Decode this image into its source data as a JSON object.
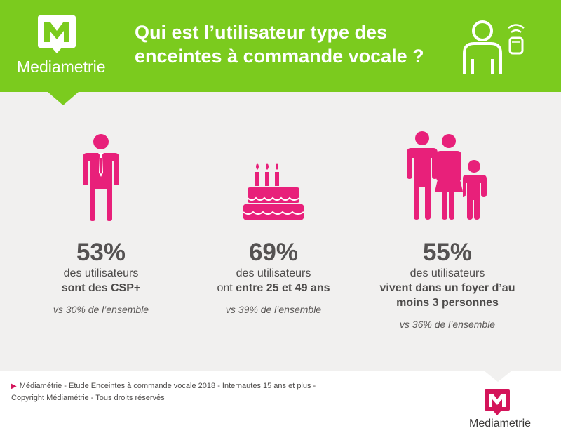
{
  "header": {
    "brand": "Mediametrie",
    "title_line1": "Qui est l’utilisateur type des",
    "title_line2": "enceintes à commande vocale ?"
  },
  "stats": [
    {
      "icon": "businessman-icon",
      "percent": "53%",
      "line1": "des utilisateurs",
      "line2_bold": "sont des CSP+",
      "comparison": "vs 30% de l’ensemble"
    },
    {
      "icon": "birthday-cake-icon",
      "percent": "69%",
      "line1": "des utilisateurs",
      "line2_prefix": "ont ",
      "line2_bold": "entre 25 et 49 ans",
      "comparison": "vs 39% de l’ensemble"
    },
    {
      "icon": "family-icon",
      "percent": "55%",
      "line1": "des utilisateurs",
      "line2_bold": "vivent dans un foyer d’au",
      "line3_bold": "moins 3 personnes",
      "comparison": "vs 36% de l’ensemble"
    }
  ],
  "footer": {
    "source_line1": "Médiamétrie - Etude Enceintes à commande vocale 2018 - Internautes 15 ans et plus -",
    "source_line2": "Copyright Médiamétrie - Tous droits réservés",
    "brand": "Mediametrie"
  },
  "colors": {
    "header_green": "#7bcb1e",
    "accent_pink": "#e8207a",
    "logo_red": "#d4145a",
    "background": "#f1f0ef"
  }
}
